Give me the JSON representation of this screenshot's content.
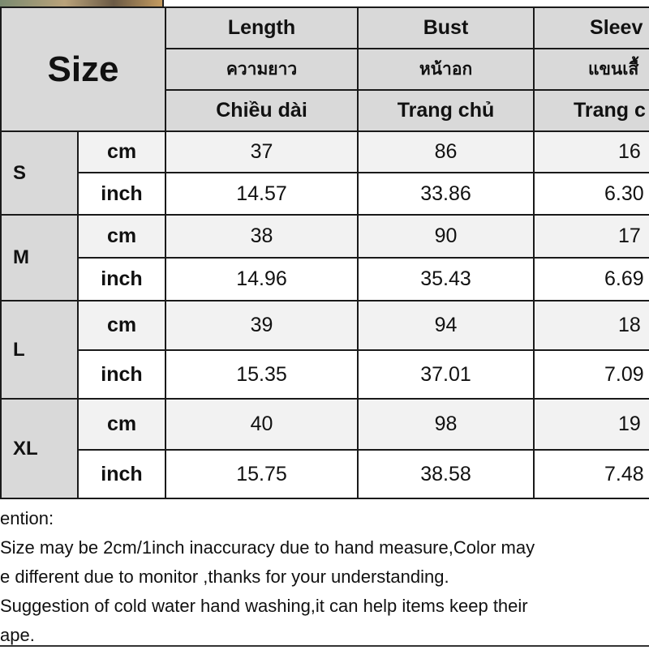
{
  "table": {
    "size_label": "Size",
    "columns": [
      {
        "en": "Length",
        "th": "ความยาว",
        "vi": "Chiều dài"
      },
      {
        "en": "Bust",
        "th": "หน้าอก",
        "vi": "Trang chủ"
      },
      {
        "en": "Sleev",
        "th": "แขนเสื้",
        "vi": "Trang c"
      }
    ],
    "rows": [
      {
        "size": "S",
        "cm": {
          "unit": "cm",
          "values": [
            "37",
            "86",
            "16"
          ]
        },
        "inch": {
          "unit": "inch",
          "values": [
            "14.57",
            "33.86",
            "6.30"
          ]
        }
      },
      {
        "size": "M",
        "cm": {
          "unit": "cm",
          "values": [
            "38",
            "90",
            "17"
          ]
        },
        "inch": {
          "unit": "inch",
          "values": [
            "14.96",
            "35.43",
            "6.69"
          ]
        }
      },
      {
        "size": "L",
        "cm": {
          "unit": "cm",
          "values": [
            "39",
            "94",
            "18"
          ]
        },
        "inch": {
          "unit": "inch",
          "values": [
            "15.35",
            "37.01",
            "7.09"
          ]
        }
      },
      {
        "size": "XL",
        "cm": {
          "unit": "cm",
          "values": [
            "40",
            "98",
            "19"
          ]
        },
        "inch": {
          "unit": "inch",
          "values": [
            "15.75",
            "38.58",
            "7.48"
          ]
        }
      }
    ]
  },
  "notes": [
    "ention:",
    "Size may be 2cm/1inch inaccuracy due to hand measure,Color may",
    "e different due to monitor ,thanks for your understanding.",
    "Suggestion of cold water hand washing,it can help items keep their",
    "ape."
  ]
}
